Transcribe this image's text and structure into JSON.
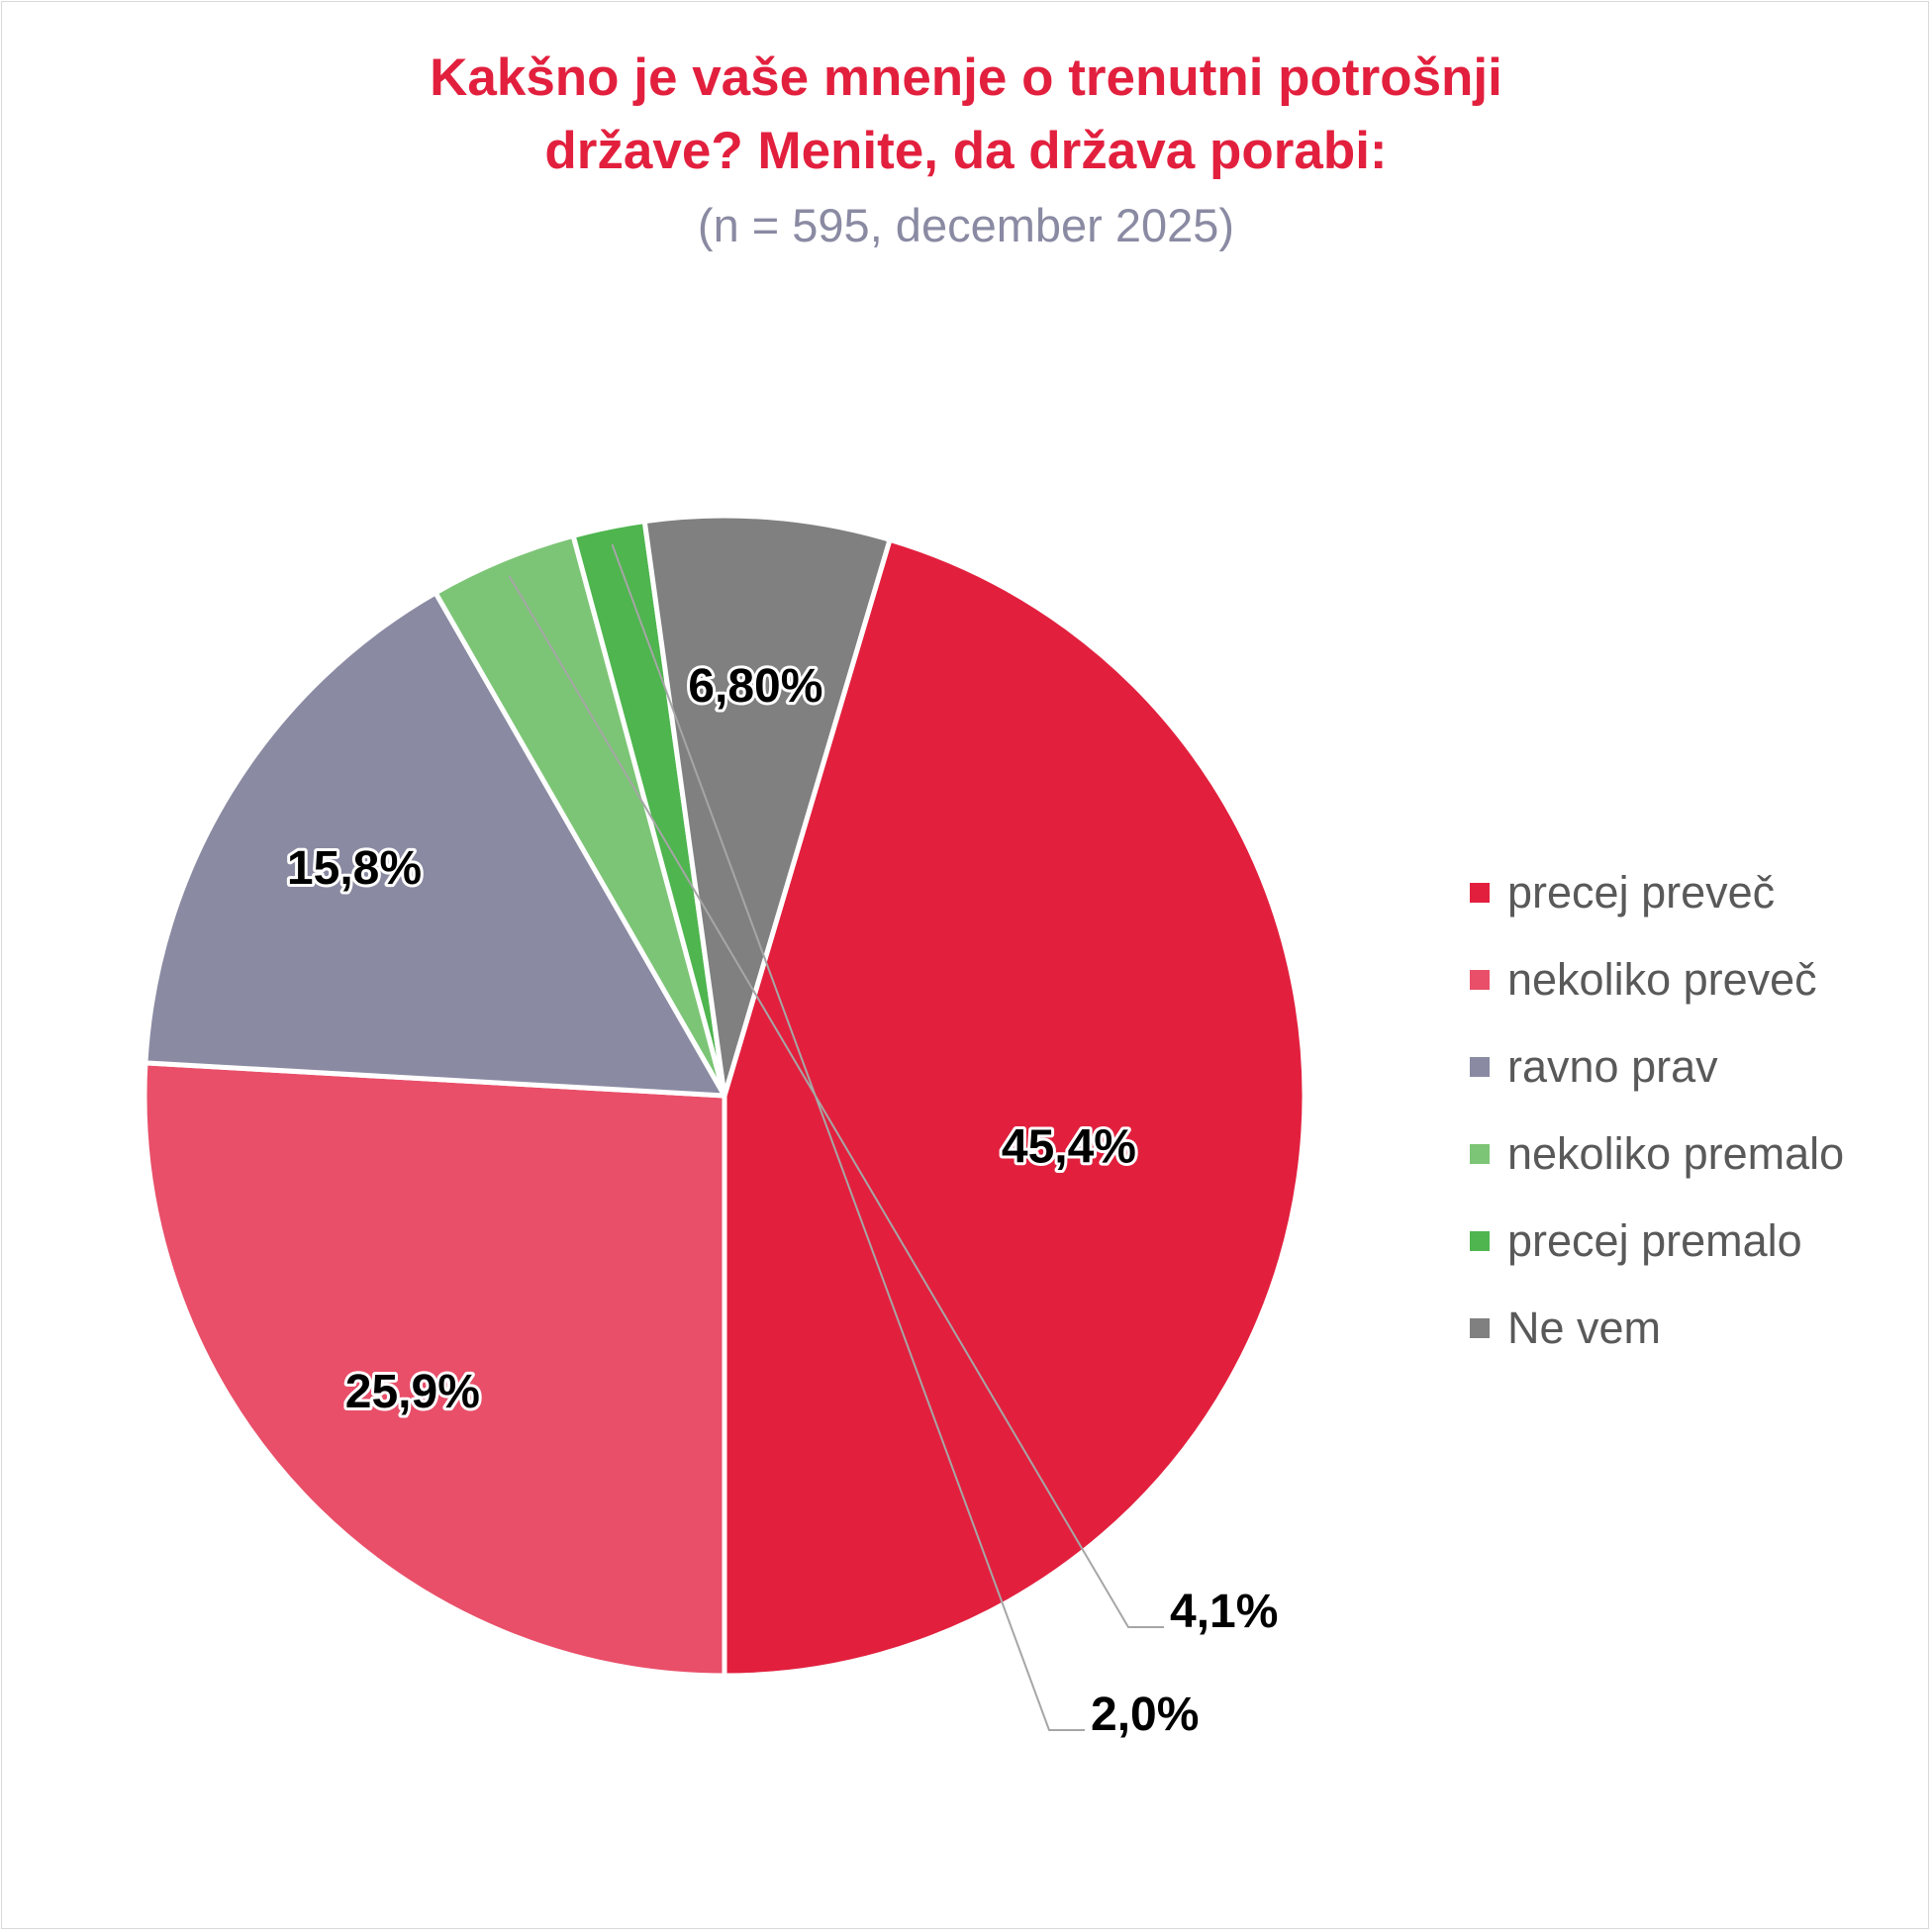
{
  "chart_data": {
    "type": "pie",
    "title": "Kakšno je vaše mnenje o trenutni potrošnji države? Menite, da država porabi:",
    "title_lines": [
      "Kakšno je vaše mnenje o trenutni potrošnji",
      "države? Menite, da država porabi:"
    ],
    "subtitle": "(n = 595, december 2025)",
    "legend_position": "right",
    "slices": [
      {
        "name": "precej preveč",
        "value": 45.4,
        "label": "45,4%",
        "color": "#e2203e"
      },
      {
        "name": "nekoliko preveč",
        "value": 25.9,
        "label": "25,9%",
        "color": "#e94f69"
      },
      {
        "name": "ravno prav",
        "value": 15.8,
        "label": "15,8%",
        "color": "#8a8aa3"
      },
      {
        "name": "nekoliko premalo",
        "value": 4.1,
        "label": "4,1%",
        "color": "#7cc576"
      },
      {
        "name": "precej premalo",
        "value": 2.0,
        "label": "2,0%",
        "color": "#4fb54f"
      },
      {
        "name": "Ne vem",
        "value": 6.8,
        "label": "6,80%",
        "color": "#808080"
      }
    ]
  }
}
